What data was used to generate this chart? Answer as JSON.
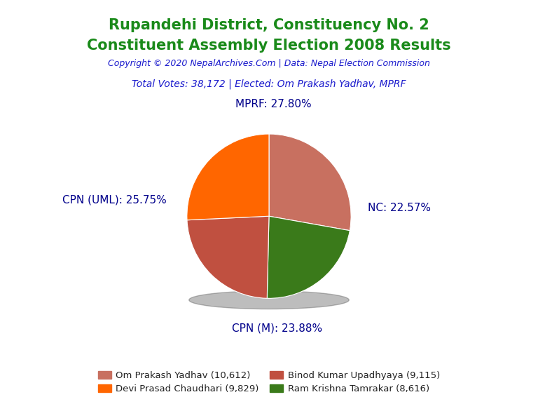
{
  "title_line1": "Rupandehi District, Constituency No. 2",
  "title_line2": "Constituent Assembly Election 2008 Results",
  "title_color": "#1a8a1a",
  "subtitle": "Copyright © 2020 NepalArchives.Com | Data: Nepal Election Commission",
  "subtitle_color": "#1a1acd",
  "info_line": "Total Votes: 38,172 | Elected: Om Prakash Yadhav, MPRF",
  "info_color": "#1a1acd",
  "slices": [
    {
      "label": "MPRF",
      "pct": 27.8,
      "color": "#C87060"
    },
    {
      "label": "NC",
      "pct": 22.57,
      "color": "#3A7A1A"
    },
    {
      "label": "CPN (M)",
      "pct": 23.88,
      "color": "#C05040"
    },
    {
      "label": "CPN (UML)",
      "pct": 25.75,
      "color": "#FF6600"
    }
  ],
  "legend_entries": [
    {
      "label": "Om Prakash Yadhav (10,612)",
      "color": "#C87060"
    },
    {
      "label": "Devi Prasad Chaudhari (9,829)",
      "color": "#FF6600"
    },
    {
      "label": "Binod Kumar Upadhyaya (9,115)",
      "color": "#C05040"
    },
    {
      "label": "Ram Krishna Tamrakar (8,616)",
      "color": "#3A7A1A"
    }
  ],
  "label_positions": {
    "MPRF": [
      0.05,
      1.3,
      "center",
      "bottom"
    ],
    "NC": [
      1.2,
      0.1,
      "left",
      "center"
    ],
    "CPN (M)": [
      0.1,
      -1.3,
      "center",
      "top"
    ],
    "CPN (UML)": [
      -1.25,
      0.2,
      "right",
      "center"
    ]
  },
  "background_color": "#FFFFFF",
  "label_color": "#00008B",
  "label_fontsize": 11,
  "title_fontsize": 15,
  "subtitle_fontsize": 9,
  "info_fontsize": 10
}
